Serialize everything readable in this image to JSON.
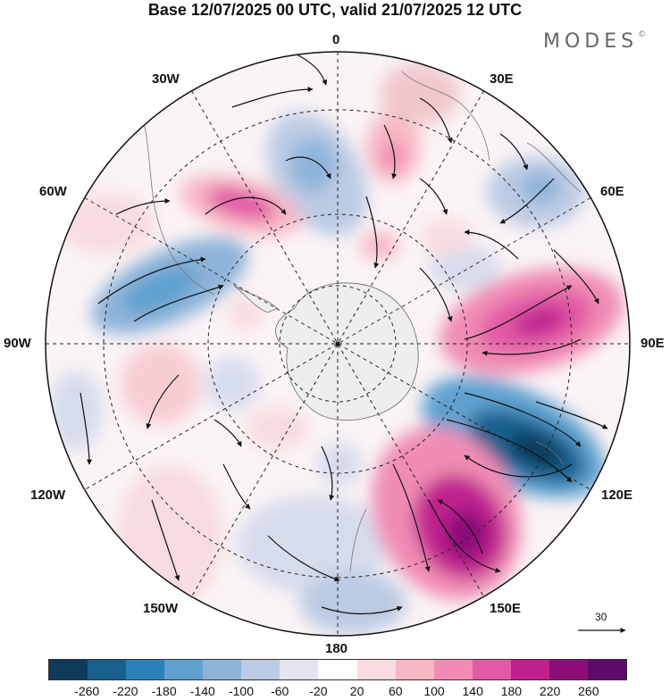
{
  "header": {
    "title": "Base 12/07/2025 00 UTC, valid 21/07/2025 12 UTC",
    "brand": "MODES",
    "brand_mark": "©"
  },
  "map": {
    "projection": "polar-stereographic-south",
    "longitude_labels": {
      "lon_0": "0",
      "lon_30e": "30E",
      "lon_60e": "60E",
      "lon_90e": "90E",
      "lon_120e": "120E",
      "lon_150e": "150E",
      "lon_180": "180",
      "lon_150w": "150W",
      "lon_120w": "120W",
      "lon_90w": "90W",
      "lon_60w": "60W",
      "lon_30w": "30W"
    },
    "vector_reference": {
      "value": "30"
    },
    "colors": {
      "land": "#eeeeee",
      "grid": "#222222"
    }
  },
  "colorbar": {
    "ticks": [
      "-260",
      "-220",
      "-180",
      "-140",
      "-100",
      "-60",
      "-20",
      "20",
      "60",
      "100",
      "140",
      "180",
      "220",
      "260"
    ],
    "colors": [
      "#0f3a5a",
      "#19608f",
      "#2b82b8",
      "#5ea1cf",
      "#8db3d9",
      "#bccbe4",
      "#e4e4f0",
      "#ffffff",
      "#f8dcdf",
      "#f7b7c3",
      "#f08cb4",
      "#e25aa6",
      "#c0218f",
      "#8c0f79",
      "#5e0a6b"
    ]
  }
}
